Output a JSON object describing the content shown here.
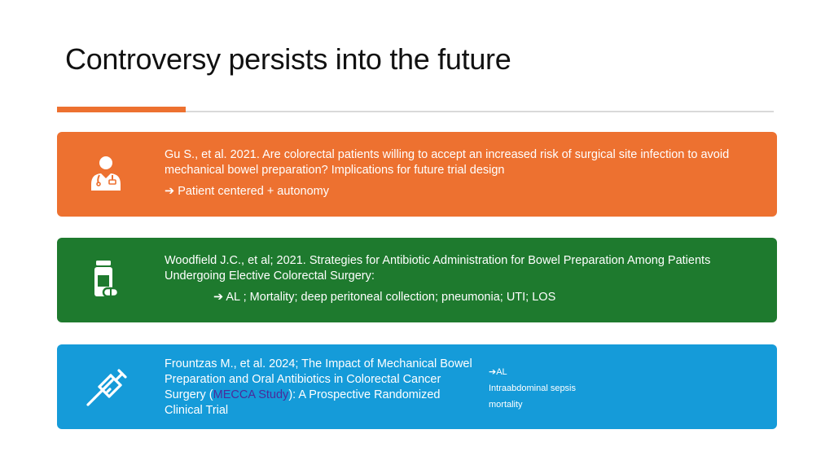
{
  "slide": {
    "title": "Controversy persists into the future"
  },
  "cards": [
    {
      "icon": "doctor-icon",
      "color": "#ed7130",
      "citation": "Gu S., et al. 2021. Are colorectal patients willing to accept an increased risk of surgical site infection to avoid mechanical bowel preparation? Implications for future trial design",
      "arrow": "➔",
      "takeaway": "Patient centered + autonomy"
    },
    {
      "icon": "medicine-icon",
      "color": "#1e7a2e",
      "citation": "Woodfield J.C., et al; 2021. Strategies for Antibiotic Administration for Bowel Preparation Among Patients Undergoing Elective Colorectal Surgery:",
      "arrow": "➔",
      "takeaway": "AL ; Mortality; deep peritoneal collection; pneumonia; UTI; LOS"
    },
    {
      "icon": "syringe-icon",
      "color": "#159bd9",
      "citation_pre": "Frountzas M., et al. 2024; The Impact of Mechanical Bowel Preparation and Oral Antibiotics in Colorectal Cancer Surgery (",
      "citation_link": "MECCA Study",
      "citation_post": "): A Prospective Randomized Clinical Trial",
      "arrow": "➔",
      "notes": [
        "AL",
        "Intraabdominal sepsis",
        "mortality"
      ]
    }
  ]
}
